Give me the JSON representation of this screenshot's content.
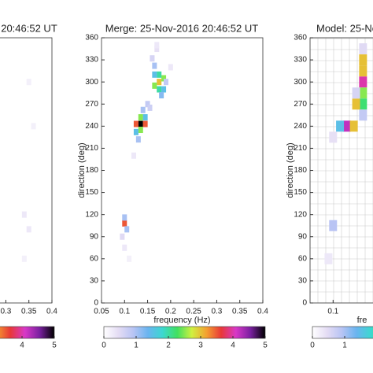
{
  "chart_data": [
    {
      "type": "heatmap",
      "title": "20:46:52 UT",
      "x": [
        0.34,
        0.35,
        0.35,
        0.36,
        0.34
      ],
      "y": [
        120,
        100,
        300,
        240,
        60
      ],
      "values": [
        0.3,
        0.3,
        0.2,
        0.2,
        0.2
      ],
      "xlim": [
        0.05,
        0.4
      ],
      "ylim": [
        0,
        360
      ],
      "xticks": [
        0.3,
        0.35,
        0.4
      ],
      "colorbar": {
        "lim": [
          0,
          5
        ],
        "ticks": [
          4,
          5
        ]
      }
    },
    {
      "type": "heatmap",
      "title": "Merge: 25-Nov-2016 20:46:52 UT",
      "xlabel": "frequency (Hz)",
      "ylabel": "direction (deg)",
      "x": [
        0.135,
        0.125,
        0.145,
        0.135,
        0.135,
        0.125,
        0.145,
        0.13,
        0.14,
        0.15,
        0.175,
        0.165,
        0.185,
        0.175,
        0.175,
        0.165,
        0.185,
        0.18,
        0.165,
        0.16,
        0.19,
        0.17,
        0.155,
        0.1,
        0.1,
        0.105,
        0.095,
        0.1,
        0.12,
        0.17,
        0.2,
        0.11
      ],
      "y": [
        243,
        243,
        243,
        235,
        252,
        232,
        252,
        222,
        262,
        270,
        300,
        295,
        305,
        290,
        310,
        310,
        290,
        282,
        322,
        332,
        300,
        345,
        265,
        108,
        116,
        100,
        90,
        75,
        200,
        350,
        320,
        60
      ],
      "values": [
        5,
        3.5,
        3.5,
        2.5,
        2.5,
        1.5,
        1.5,
        1,
        1,
        0.8,
        3,
        2.5,
        2.5,
        2,
        2,
        1.5,
        1.5,
        1.2,
        1,
        0.6,
        0.8,
        0.4,
        0.7,
        3.5,
        1,
        1,
        0.5,
        0.3,
        0.3,
        0.3,
        0.3,
        0.2
      ],
      "xlim": [
        0.05,
        0.4
      ],
      "ylim": [
        0,
        360
      ],
      "xticks": [
        0.05,
        0.1,
        0.15,
        0.2,
        0.25,
        0.3,
        0.35,
        0.4
      ],
      "yticks": [
        0,
        30,
        60,
        90,
        120,
        150,
        180,
        210,
        240,
        270,
        300,
        330,
        360
      ],
      "colorbar": {
        "lim": [
          0,
          5
        ],
        "ticks": [
          0,
          1,
          2,
          3,
          4,
          5
        ]
      }
    },
    {
      "type": "heatmap",
      "title": "Model: 25-Ne",
      "xlabel": "fre",
      "ylabel": "direction (deg)",
      "cell_grid": true,
      "x": [
        0.165,
        0.165,
        0.165,
        0.165,
        0.15,
        0.165,
        0.165,
        0.13,
        0.115,
        0.145,
        0.1,
        0.1,
        0.09,
        0.15,
        0.165
      ],
      "y": [
        330,
        300,
        285,
        270,
        270,
        315,
        255,
        240,
        240,
        240,
        225,
        105,
        60,
        285,
        345
      ],
      "values": [
        3,
        4,
        2.5,
        2.2,
        3,
        3,
        0.8,
        4.2,
        1.5,
        3,
        0.4,
        0.9,
        0.3,
        0.6,
        0.5
      ],
      "xlim": [
        0.05,
        0.4
      ],
      "ylim": [
        0,
        360
      ],
      "xticks": [
        0.1
      ],
      "yticks": [
        0,
        30,
        60,
        90,
        120,
        150,
        180,
        210,
        240,
        270,
        300,
        330,
        360
      ],
      "colorbar": {
        "lim": [
          0,
          5
        ],
        "ticks": [
          0,
          1
        ]
      }
    }
  ]
}
